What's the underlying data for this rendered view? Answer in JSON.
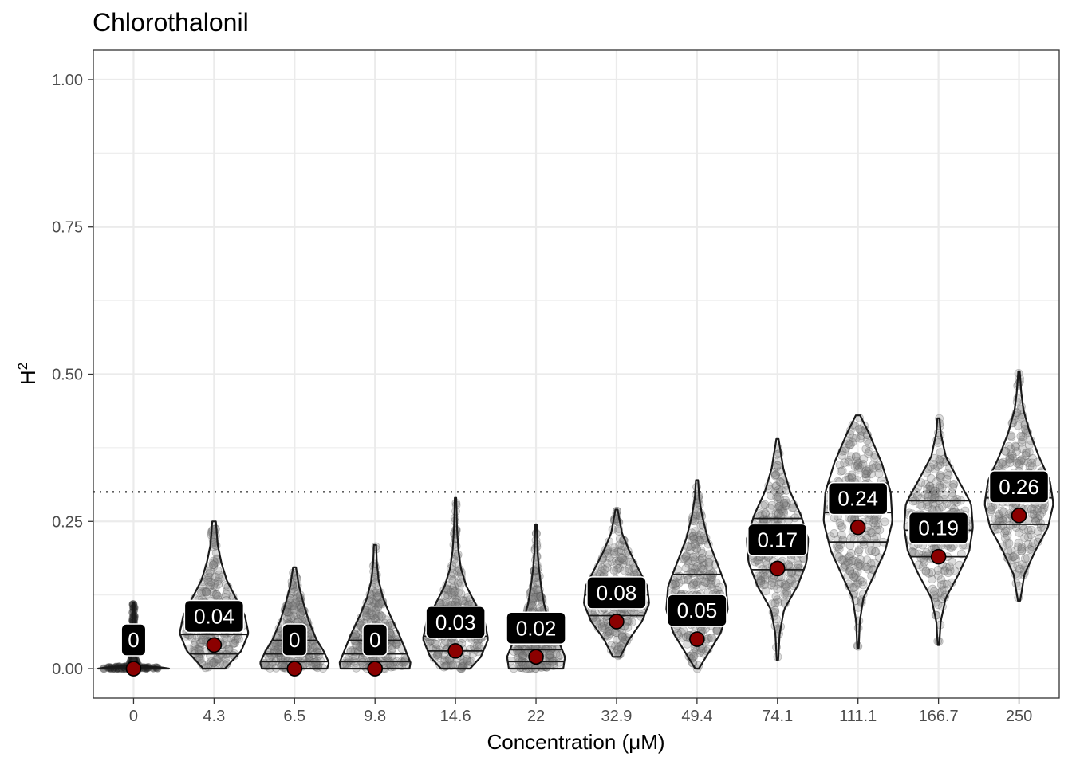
{
  "chart_data": {
    "type": "violin",
    "title": "Chlorothalonil",
    "xlabel": "Concentration (μM)",
    "ylabel": "H",
    "ylabel_superscript": "2",
    "categories": [
      "0",
      "4.3",
      "6.5",
      "9.8",
      "14.6",
      "22",
      "32.9",
      "49.4",
      "74.1",
      "111.1",
      "166.7",
      "250"
    ],
    "mean_values": [
      0,
      0.04,
      0,
      0,
      0.03,
      0.02,
      0.08,
      0.05,
      0.17,
      0.24,
      0.19,
      0.26
    ],
    "mean_labels": [
      "0",
      "0.04",
      "0",
      "0",
      "0.03",
      "0.02",
      "0.08",
      "0.05",
      "0.17",
      "0.24",
      "0.19",
      "0.26"
    ],
    "distributions": [
      {
        "min": 0,
        "max": 0.112,
        "q1": 0.0,
        "median": 0.0,
        "q3": 0.002,
        "profile": [
          [
            0,
            1
          ],
          [
            0.002,
            0.8
          ],
          [
            0.005,
            0.15
          ],
          [
            0.02,
            0.06
          ],
          [
            0.05,
            0.04
          ],
          [
            0.08,
            0.03
          ],
          [
            0.112,
            0.02
          ]
        ]
      },
      {
        "min": 0,
        "max": 0.25,
        "q1": 0.025,
        "median": 0.058,
        "q3": 0.09,
        "profile": [
          [
            0,
            0.3
          ],
          [
            0.01,
            0.45
          ],
          [
            0.03,
            0.75
          ],
          [
            0.06,
            0.95
          ],
          [
            0.09,
            0.85
          ],
          [
            0.12,
            0.6
          ],
          [
            0.15,
            0.35
          ],
          [
            0.18,
            0.2
          ],
          [
            0.21,
            0.1
          ],
          [
            0.25,
            0.05
          ]
        ]
      },
      {
        "min": 0,
        "max": 0.172,
        "q1": 0.012,
        "median": 0.025,
        "q3": 0.048,
        "profile": [
          [
            0,
            0.9
          ],
          [
            0.01,
            0.95
          ],
          [
            0.03,
            0.8
          ],
          [
            0.05,
            0.6
          ],
          [
            0.08,
            0.4
          ],
          [
            0.11,
            0.25
          ],
          [
            0.14,
            0.12
          ],
          [
            0.172,
            0.04
          ]
        ]
      },
      {
        "min": 0,
        "max": 0.21,
        "q1": 0.012,
        "median": 0.025,
        "q3": 0.048,
        "profile": [
          [
            0,
            0.95
          ],
          [
            0.01,
            0.98
          ],
          [
            0.03,
            0.85
          ],
          [
            0.06,
            0.65
          ],
          [
            0.09,
            0.42
          ],
          [
            0.12,
            0.22
          ],
          [
            0.15,
            0.1
          ],
          [
            0.18,
            0.05
          ],
          [
            0.21,
            0.03
          ]
        ]
      },
      {
        "min": 0,
        "max": 0.29,
        "q1": 0.03,
        "median": 0.055,
        "q3": 0.085,
        "profile": [
          [
            0,
            0.4
          ],
          [
            0.02,
            0.7
          ],
          [
            0.05,
            0.9
          ],
          [
            0.08,
            0.8
          ],
          [
            0.11,
            0.55
          ],
          [
            0.14,
            0.3
          ],
          [
            0.17,
            0.15
          ],
          [
            0.2,
            0.08
          ],
          [
            0.24,
            0.04
          ],
          [
            0.29,
            0.02
          ]
        ]
      },
      {
        "min": 0,
        "max": 0.245,
        "q1": 0.012,
        "median": 0.032,
        "q3": 0.055,
        "profile": [
          [
            0,
            0.75
          ],
          [
            0.02,
            0.8
          ],
          [
            0.05,
            0.6
          ],
          [
            0.08,
            0.35
          ],
          [
            0.11,
            0.22
          ],
          [
            0.14,
            0.14
          ],
          [
            0.17,
            0.08
          ],
          [
            0.2,
            0.04
          ],
          [
            0.245,
            0.02
          ]
        ]
      },
      {
        "min": 0.02,
        "max": 0.27,
        "q1": 0.09,
        "median": 0.125,
        "q3": 0.155,
        "profile": [
          [
            0.02,
            0.1
          ],
          [
            0.05,
            0.35
          ],
          [
            0.08,
            0.7
          ],
          [
            0.11,
            0.9
          ],
          [
            0.14,
            0.85
          ],
          [
            0.17,
            0.6
          ],
          [
            0.2,
            0.35
          ],
          [
            0.23,
            0.15
          ],
          [
            0.27,
            0.03
          ]
        ]
      },
      {
        "min": 0,
        "max": 0.32,
        "q1": 0.072,
        "median": 0.115,
        "q3": 0.16,
        "profile": [
          [
            0,
            0.05
          ],
          [
            0.03,
            0.35
          ],
          [
            0.06,
            0.65
          ],
          [
            0.1,
            0.85
          ],
          [
            0.14,
            0.8
          ],
          [
            0.18,
            0.55
          ],
          [
            0.22,
            0.3
          ],
          [
            0.26,
            0.14
          ],
          [
            0.29,
            0.06
          ],
          [
            0.32,
            0.03
          ]
        ]
      },
      {
        "min": 0.015,
        "max": 0.39,
        "q1": 0.168,
        "median": 0.21,
        "q3": 0.255,
        "profile": [
          [
            0.015,
            0.02
          ],
          [
            0.06,
            0.06
          ],
          [
            0.1,
            0.18
          ],
          [
            0.14,
            0.55
          ],
          [
            0.18,
            0.8
          ],
          [
            0.22,
            0.85
          ],
          [
            0.26,
            0.65
          ],
          [
            0.3,
            0.35
          ],
          [
            0.34,
            0.16
          ],
          [
            0.39,
            0.03
          ]
        ]
      },
      {
        "min": 0.035,
        "max": 0.43,
        "q1": 0.215,
        "median": 0.265,
        "q3": 0.315,
        "profile": [
          [
            0.035,
            0.02
          ],
          [
            0.08,
            0.05
          ],
          [
            0.12,
            0.15
          ],
          [
            0.16,
            0.45
          ],
          [
            0.2,
            0.75
          ],
          [
            0.25,
            0.95
          ],
          [
            0.3,
            0.9
          ],
          [
            0.35,
            0.65
          ],
          [
            0.4,
            0.3
          ],
          [
            0.43,
            0.06
          ]
        ]
      },
      {
        "min": 0.04,
        "max": 0.425,
        "q1": 0.19,
        "median": 0.235,
        "q3": 0.285,
        "profile": [
          [
            0.04,
            0.02
          ],
          [
            0.08,
            0.06
          ],
          [
            0.12,
            0.2
          ],
          [
            0.16,
            0.55
          ],
          [
            0.2,
            0.85
          ],
          [
            0.24,
            0.95
          ],
          [
            0.28,
            0.9
          ],
          [
            0.32,
            0.55
          ],
          [
            0.36,
            0.2
          ],
          [
            0.4,
            0.06
          ],
          [
            0.425,
            0.03
          ]
        ]
      },
      {
        "min": 0.115,
        "max": 0.505,
        "q1": 0.245,
        "median": 0.29,
        "q3": 0.33,
        "profile": [
          [
            0.115,
            0.03
          ],
          [
            0.16,
            0.15
          ],
          [
            0.2,
            0.45
          ],
          [
            0.24,
            0.8
          ],
          [
            0.28,
            0.95
          ],
          [
            0.32,
            0.85
          ],
          [
            0.36,
            0.55
          ],
          [
            0.4,
            0.3
          ],
          [
            0.44,
            0.12
          ],
          [
            0.47,
            0.06
          ],
          [
            0.505,
            0.02
          ]
        ]
      }
    ],
    "threshold_line": 0.3,
    "ylim": [
      -0.05,
      1.05
    ],
    "yticks": [
      0.0,
      0.25,
      0.5,
      0.75,
      1.0
    ],
    "ytick_labels": [
      "0.00",
      "0.25",
      "0.50",
      "0.75",
      "1.00"
    ],
    "grid": true,
    "legend": "none",
    "colors": {
      "mean_point": "#8b0000",
      "violin_outline": "#1a1a1a",
      "jitter_points": "#808080",
      "label_box": "#000000",
      "label_text": "#ffffff",
      "grid": "#ebebeb",
      "panel_border": "#333333"
    }
  }
}
